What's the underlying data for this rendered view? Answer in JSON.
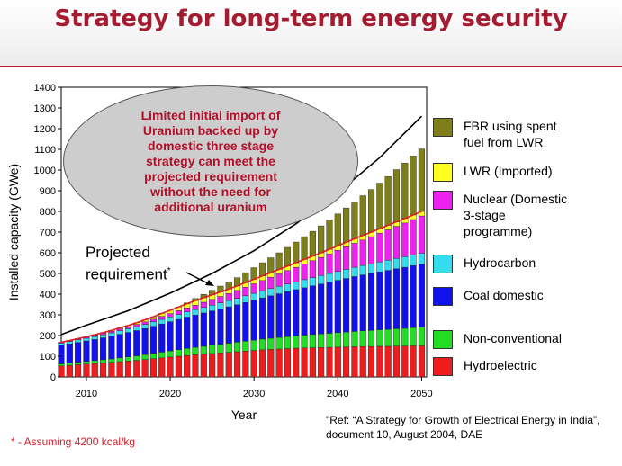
{
  "slide": {
    "title": "Strategy for long-term energy security",
    "callout": "Limited initial import of\nUranium backed up by\ndomestic three stage\nstrategy can meet the\nprojected requirement\nwithout the need for\nadditional uranium",
    "projected_label": "Projected\nrequirement",
    "projected_marker": "*",
    "reference": "\"Ref: “A Strategy for Growth of Electrical Energy in India”, document 10, August 2004, DAE",
    "footnote": "* - Assuming 4200 kcal/kg"
  },
  "chart_data": {
    "type": "bar",
    "stacked": true,
    "title": "",
    "xlabel": "Year",
    "ylabel": "Installed capacity (GWe)",
    "ylim": [
      0,
      1400
    ],
    "yticks": [
      0,
      100,
      200,
      300,
      400,
      500,
      600,
      700,
      800,
      900,
      1000,
      1100,
      1200,
      1300,
      1400
    ],
    "xticks": [
      2010,
      2020,
      2030,
      2040,
      2050
    ],
    "grid": false,
    "legend_position": "right",
    "categories": [
      2007,
      2008,
      2009,
      2010,
      2011,
      2012,
      2013,
      2014,
      2015,
      2016,
      2017,
      2018,
      2019,
      2020,
      2021,
      2022,
      2023,
      2024,
      2025,
      2026,
      2027,
      2028,
      2029,
      2030,
      2031,
      2032,
      2033,
      2034,
      2035,
      2036,
      2037,
      2038,
      2039,
      2040,
      2041,
      2042,
      2043,
      2044,
      2045,
      2046,
      2047,
      2048,
      2049,
      2050
    ],
    "series": [
      {
        "name": "Hydroelectric",
        "color": "#ee1c1c",
        "values": [
          53,
          56,
          59,
          62,
          65,
          68,
          71,
          74,
          77,
          80,
          84,
          88,
          92,
          96,
          100,
          104,
          107,
          110,
          113,
          116,
          119,
          122,
          125,
          128,
          131,
          133,
          135,
          137,
          139,
          140,
          141,
          142,
          143,
          144,
          145,
          146,
          147,
          147,
          148,
          148,
          149,
          149,
          150,
          150
        ]
      },
      {
        "name": "Non-conventional",
        "color": "#22dd22",
        "values": [
          10,
          11,
          12,
          13,
          14,
          15,
          16,
          18,
          20,
          22,
          24,
          26,
          28,
          30,
          32,
          34,
          36,
          38,
          40,
          42,
          44,
          46,
          48,
          50,
          52,
          54,
          56,
          58,
          60,
          62,
          64,
          66,
          68,
          70,
          72,
          74,
          76,
          78,
          80,
          82,
          84,
          86,
          88,
          90
        ]
      },
      {
        "name": "Coal domestic",
        "color": "#1111ee",
        "values": [
          90,
          93,
          96,
          99,
          102,
          106,
          110,
          114,
          118,
          122,
          126,
          131,
          136,
          141,
          146,
          151,
          156,
          161,
          166,
          171,
          176,
          181,
          187,
          193,
          199,
          205,
          211,
          217,
          223,
          229,
          235,
          241,
          247,
          253,
          259,
          265,
          270,
          275,
          280,
          285,
          290,
          295,
          300,
          305
        ]
      },
      {
        "name": "Hydrocarbon",
        "color": "#33ddee",
        "values": [
          10,
          11,
          12,
          13,
          14,
          15,
          16,
          17,
          18,
          19,
          20,
          21,
          22,
          23,
          24,
          25,
          26,
          27,
          28,
          29,
          30,
          31,
          32,
          33,
          34,
          35,
          36,
          37,
          38,
          39,
          40,
          41,
          42,
          43,
          44,
          45,
          46,
          47,
          48,
          49,
          50,
          51,
          52,
          53
        ]
      },
      {
        "name": "Nuclear (Domestic 3-stage programme)",
        "color": "#ee22ee",
        "values": [
          5,
          5,
          6,
          6,
          7,
          7,
          8,
          9,
          10,
          11,
          12,
          13,
          15,
          16,
          18,
          20,
          22,
          25,
          28,
          31,
          34,
          38,
          42,
          46,
          50,
          55,
          60,
          65,
          70,
          76,
          82,
          88,
          95,
          102,
          109,
          116,
          123,
          131,
          139,
          147,
          155,
          163,
          171,
          180
        ]
      },
      {
        "name": "LWR (Imported)",
        "color": "#ffff22",
        "values": [
          0,
          0,
          0,
          1,
          2,
          3,
          4,
          5,
          6,
          8,
          10,
          12,
          14,
          16,
          18,
          20,
          22,
          22,
          22,
          22,
          22,
          22,
          22,
          22,
          22,
          22,
          22,
          22,
          22,
          22,
          22,
          22,
          22,
          22,
          22,
          22,
          22,
          22,
          22,
          22,
          22,
          22,
          22,
          22
        ]
      },
      {
        "name": "FBR using spent fuel from LWR",
        "color": "#7f7f1a",
        "values": [
          0,
          0,
          0,
          0,
          0,
          0,
          0,
          0,
          0,
          0,
          0,
          0,
          0,
          0,
          0,
          4,
          10,
          16,
          22,
          28,
          34,
          40,
          48,
          56,
          64,
          72,
          80,
          90,
          100,
          110,
          120,
          130,
          142,
          154,
          166,
          178,
          192,
          206,
          220,
          236,
          252,
          268,
          285,
          302
        ]
      }
    ],
    "legend": [
      {
        "label": "FBR using spent\nfuel from LWR",
        "color": "#7f7f1a"
      },
      {
        "label": "LWR (Imported)",
        "color": "#ffff22"
      },
      {
        "label": "Nuclear (Domestic\n3-stage\nprogramme)",
        "color": "#ee22ee"
      },
      {
        "label": "Hydrocarbon",
        "color": "#33ddee"
      },
      {
        "label": "Coal domestic",
        "color": "#1111ee"
      },
      {
        "label": "Non-conventional",
        "color": "#22dd22"
      },
      {
        "label": "Hydroelectric",
        "color": "#ee1c1c"
      }
    ],
    "projected_requirement": {
      "x": [
        2007,
        2010,
        2015,
        2020,
        2025,
        2030,
        2035,
        2040,
        2045,
        2050
      ],
      "y": [
        205,
        250,
        320,
        405,
        500,
        610,
        740,
        890,
        1060,
        1260
      ]
    }
  }
}
